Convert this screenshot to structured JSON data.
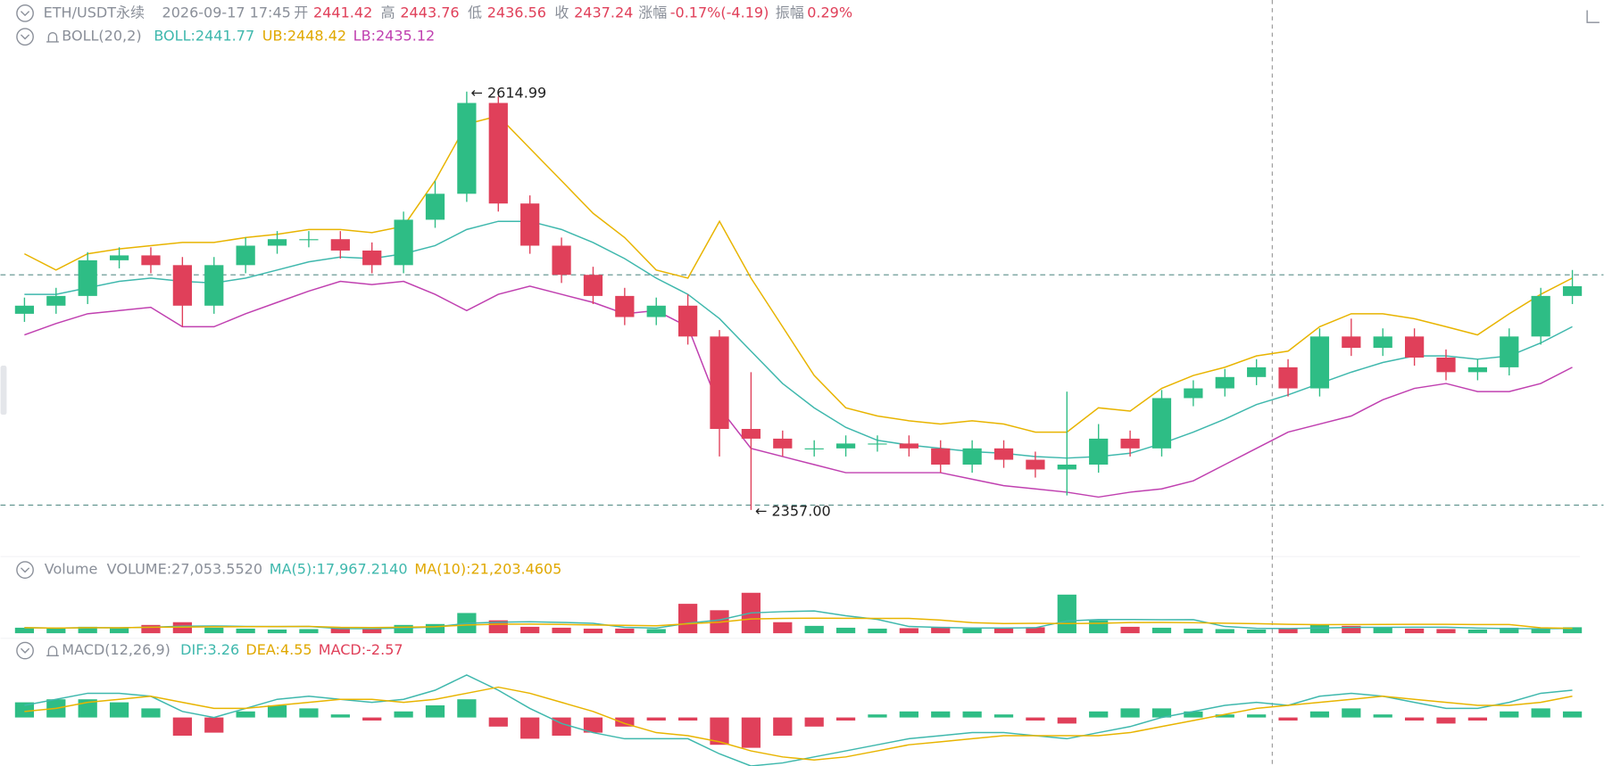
{
  "header": {
    "symbol": "ETH/USDT永续",
    "time": "2026-09-17 17:45",
    "open_label": "开",
    "open": "2441.42",
    "high_label": "高",
    "high": "2443.76",
    "low_label": "低",
    "low": "2436.56",
    "close_label": "收",
    "close": "2437.24",
    "change_label": "涨幅",
    "change": "-0.17%(-4.19)",
    "amplitude_label": "振幅",
    "amplitude": "0.29%",
    "boll_name": "BOLL(20,2)",
    "boll": "BOLL:2441.77",
    "ub": "UB:2448.42",
    "lb": "LB:2435.12",
    "volume_name": "Volume",
    "volume": "VOLUME:27,053.5520",
    "ma5": "MA(5):17,967.2140",
    "ma10": "MA(10):21,203.4605",
    "macd_name": "MACD(12,26,9)",
    "dif": "DIF:3.26",
    "dea": "DEA:4.55",
    "macd": "MACD:-2.57"
  },
  "chart_data": [
    {
      "type": "candlestick",
      "ylim": [
        2344,
        2640
      ],
      "up_color": "#2ebd85",
      "down_color": "#e0405a",
      "open": [
        2478,
        2483,
        2489,
        2511,
        2514,
        2508,
        2483,
        2508,
        2520,
        2524,
        2524,
        2517,
        2508,
        2536,
        2552,
        2608,
        2546,
        2520,
        2502,
        2489,
        2476,
        2483,
        2464,
        2407,
        2401,
        2395,
        2395,
        2398,
        2398,
        2395,
        2385,
        2395,
        2388,
        2382,
        2385,
        2401,
        2395,
        2426,
        2432,
        2439,
        2445,
        2432,
        2464,
        2457,
        2464,
        2451,
        2442,
        2445,
        2464,
        2489
      ],
      "high": [
        2488,
        2494,
        2516,
        2519,
        2519,
        2513,
        2513,
        2525,
        2529,
        2529,
        2529,
        2522,
        2541,
        2560,
        2615,
        2612,
        2551,
        2525,
        2507,
        2494,
        2488,
        2490,
        2468,
        2442,
        2406,
        2400,
        2403,
        2403,
        2403,
        2400,
        2400,
        2400,
        2393,
        2430,
        2410,
        2406,
        2431,
        2437,
        2444,
        2450,
        2450,
        2469,
        2475,
        2469,
        2469,
        2456,
        2450,
        2469,
        2494,
        2505
      ],
      "low": [
        2473,
        2478,
        2484,
        2506,
        2503,
        2470,
        2478,
        2503,
        2515,
        2519,
        2512,
        2503,
        2503,
        2531,
        2547,
        2541,
        2515,
        2497,
        2484,
        2471,
        2471,
        2459,
        2390,
        2357,
        2390,
        2390,
        2390,
        2393,
        2390,
        2380,
        2380,
        2383,
        2377,
        2366,
        2380,
        2390,
        2390,
        2421,
        2427,
        2434,
        2427,
        2427,
        2452,
        2452,
        2446,
        2437,
        2437,
        2440,
        2459,
        2484
      ],
      "close": [
        2483,
        2489,
        2511,
        2514,
        2508,
        2483,
        2508,
        2520,
        2524,
        2524,
        2517,
        2508,
        2536,
        2552,
        2608,
        2546,
        2520,
        2502,
        2489,
        2476,
        2483,
        2464,
        2407,
        2401,
        2395,
        2395,
        2398,
        2398,
        2395,
        2385,
        2395,
        2388,
        2382,
        2385,
        2401,
        2395,
        2426,
        2432,
        2439,
        2445,
        2432,
        2464,
        2457,
        2464,
        2451,
        2442,
        2445,
        2464,
        2489,
        2495
      ],
      "bands": [
        {
          "color": "#3fb8ad",
          "values": [
            2490,
            2490,
            2494,
            2498,
            2500,
            2498,
            2497,
            2500,
            2505,
            2510,
            2513,
            2512,
            2515,
            2520,
            2530,
            2535,
            2535,
            2530,
            2522,
            2512,
            2500,
            2490,
            2475,
            2455,
            2435,
            2420,
            2408,
            2400,
            2397,
            2395,
            2393,
            2392,
            2390,
            2389,
            2390,
            2392,
            2398,
            2405,
            2413,
            2422,
            2428,
            2435,
            2442,
            2448,
            2452,
            2452,
            2450,
            2452,
            2460,
            2470
          ]
        },
        {
          "color": "#e8b400",
          "values": [
            2515,
            2505,
            2515,
            2518,
            2520,
            2522,
            2522,
            2525,
            2527,
            2530,
            2530,
            2528,
            2532,
            2560,
            2595,
            2600,
            2580,
            2560,
            2540,
            2525,
            2505,
            2500,
            2535,
            2500,
            2470,
            2440,
            2420,
            2415,
            2412,
            2410,
            2412,
            2410,
            2405,
            2405,
            2420,
            2418,
            2432,
            2440,
            2445,
            2452,
            2455,
            2470,
            2478,
            2478,
            2475,
            2470,
            2465,
            2478,
            2490,
            2500
          ]
        },
        {
          "color": "#c040b0",
          "values": [
            2465,
            2472,
            2478,
            2480,
            2482,
            2470,
            2470,
            2478,
            2485,
            2492,
            2498,
            2496,
            2498,
            2490,
            2480,
            2490,
            2495,
            2490,
            2485,
            2478,
            2480,
            2470,
            2420,
            2395,
            2390,
            2385,
            2380,
            2380,
            2380,
            2380,
            2376,
            2372,
            2370,
            2368,
            2365,
            2368,
            2370,
            2375,
            2385,
            2395,
            2405,
            2410,
            2415,
            2425,
            2432,
            2435,
            2430,
            2430,
            2435,
            2445
          ]
        }
      ],
      "hlines": [
        2502,
        2360
      ],
      "annotations": [
        "← 2614.99",
        "← 2357.00"
      ]
    },
    {
      "type": "volume",
      "ylim": [
        0,
        50000
      ],
      "values": [
        6000,
        5000,
        7000,
        5500,
        9000,
        12000,
        6000,
        5000,
        4000,
        4500,
        6000,
        5000,
        9000,
        10000,
        22000,
        14000,
        7000,
        6000,
        5000,
        5000,
        4500,
        32000,
        25000,
        44000,
        12000,
        8000,
        6000,
        5000,
        5500,
        7000,
        5000,
        6000,
        6500,
        42000,
        14000,
        7000,
        6000,
        5000,
        4500,
        4000,
        5000,
        9000,
        8000,
        6000,
        5000,
        4500,
        4000,
        6000,
        5000,
        6500
      ],
      "lines": [
        {
          "color": "#3fb8ad",
          "values": [
            6000,
            5500,
            6000,
            5900,
            6500,
            7700,
            7900,
            7400,
            7200,
            7300,
            5100,
            4900,
            5700,
            6800,
            10800,
            12000,
            12400,
            11800,
            10800,
            6400,
            5500,
            10900,
            14500,
            22100,
            23500,
            24200,
            19000,
            15000,
            7300,
            6300,
            5700,
            5700,
            6000,
            13300,
            14900,
            14900,
            14700,
            14800,
            7300,
            5300,
            5100,
            5700,
            6300,
            6400,
            6600,
            6500,
            5500,
            5100,
            4900,
            5200
          ]
        },
        {
          "color": "#e8b400",
          "values": [
            6000,
            5500,
            6000,
            5900,
            6500,
            6700,
            7000,
            7100,
            7200,
            7400,
            6400,
            6200,
            6500,
            7000,
            9000,
            9800,
            9900,
            9600,
            9000,
            8600,
            8100,
            10300,
            12000,
            15500,
            16100,
            16300,
            16200,
            16100,
            16100,
            14300,
            11600,
            10600,
            10800,
            10600,
            10800,
            11700,
            11800,
            11400,
            10900,
            10400,
            9700,
            9300,
            9500,
            9600,
            9700,
            9700,
            9400,
            9500,
            5900,
            5300
          ]
        }
      ]
    },
    {
      "type": "macd",
      "ylim": [
        -16,
        16
      ],
      "up_color": "#2ebd85",
      "down_color": "#e0405a",
      "hist": [
        5,
        6,
        6,
        5,
        3,
        -6,
        -5,
        2,
        4,
        3,
        1,
        -1,
        2,
        4,
        6,
        -3,
        -7,
        -6,
        -5,
        -3,
        -1,
        -1,
        -9,
        -10,
        -6,
        -3,
        -1,
        1,
        2,
        2,
        2,
        1,
        -1,
        -2,
        2,
        3,
        3,
        2,
        1,
        1,
        -1,
        2,
        3,
        1,
        -1,
        -2,
        -1,
        2,
        3,
        2
      ],
      "lines": [
        {
          "color": "#3fb8ad",
          "values": [
            4,
            6,
            8,
            8,
            7,
            2,
            0,
            3,
            6,
            7,
            6,
            5,
            6,
            9,
            14,
            9,
            3,
            -2,
            -5,
            -7,
            -7,
            -7,
            -12,
            -16,
            -15,
            -13,
            -11,
            -9,
            -7,
            -6,
            -5,
            -5,
            -6,
            -7,
            -5,
            -3,
            0,
            2,
            4,
            5,
            4,
            7,
            8,
            7,
            5,
            3,
            3,
            5,
            8,
            9
          ]
        },
        {
          "color": "#e8b400",
          "values": [
            2,
            3,
            5,
            6,
            7,
            5,
            3,
            3,
            4,
            5,
            6,
            6,
            5,
            6,
            8,
            10,
            8,
            5,
            2,
            -2,
            -5,
            -6,
            -8,
            -11,
            -13,
            -14,
            -13,
            -11,
            -9,
            -8,
            -7,
            -6,
            -6,
            -6,
            -6,
            -5,
            -3,
            -1,
            1,
            3,
            4,
            5,
            6,
            7,
            6,
            5,
            4,
            4,
            5,
            7
          ]
        }
      ]
    }
  ]
}
